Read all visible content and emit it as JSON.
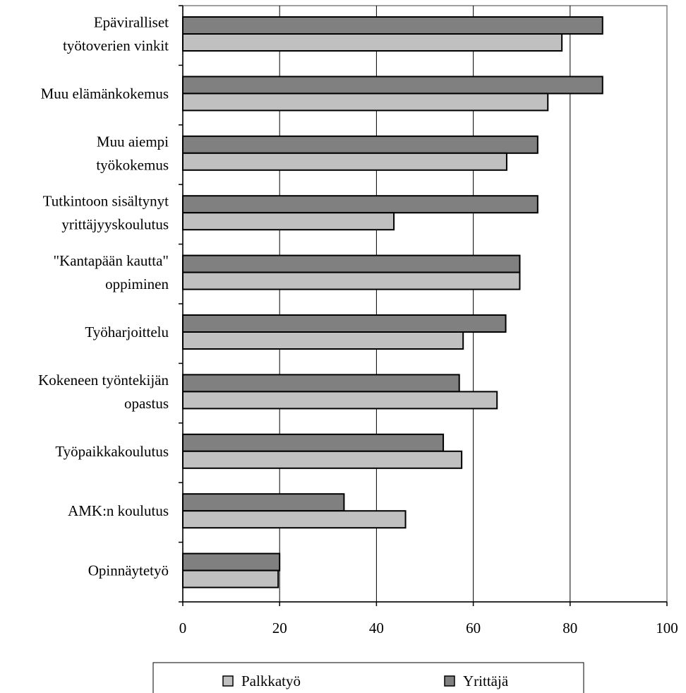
{
  "chart_data": {
    "type": "bar",
    "orientation": "horizontal",
    "categories": [
      [
        "Epäviralliset",
        "työtoverien vinkit"
      ],
      [
        "Muu elämänkokemus"
      ],
      [
        "Muu aiempi",
        "työkokemus"
      ],
      [
        "Tutkintoon sisältynyt",
        "yrittäjyyskoulutus"
      ],
      [
        "\"Kantapään kautta\"",
        "oppiminen"
      ],
      [
        "Työharjoittelu"
      ],
      [
        "Kokeneen työntekijän",
        "opastus"
      ],
      [
        "Työpaikkakoulutus"
      ],
      [
        "AMK:n koulutus"
      ],
      [
        "Opinnäytetyö"
      ]
    ],
    "series": [
      {
        "name": "Yrittäjä",
        "color": "#808080",
        "values": [
          86.7,
          86.7,
          73.3,
          73.3,
          69.6,
          66.7,
          57.1,
          53.8,
          33.3,
          20.0
        ]
      },
      {
        "name": "Palkkatyö",
        "color": "#c0c0c0",
        "values": [
          78.3,
          75.4,
          66.9,
          43.6,
          69.6,
          57.9,
          64.9,
          57.6,
          46.0,
          19.7
        ]
      }
    ],
    "xlim": [
      0,
      100
    ],
    "xticks": [
      "0",
      "20",
      "40",
      "60",
      "80",
      "100"
    ],
    "grid": "vertical",
    "legend": {
      "position": "bottom",
      "items": [
        {
          "name": "Palkkatyö",
          "color": "#c0c0c0"
        },
        {
          "name": "Yrittäjä",
          "color": "#808080"
        }
      ]
    }
  }
}
